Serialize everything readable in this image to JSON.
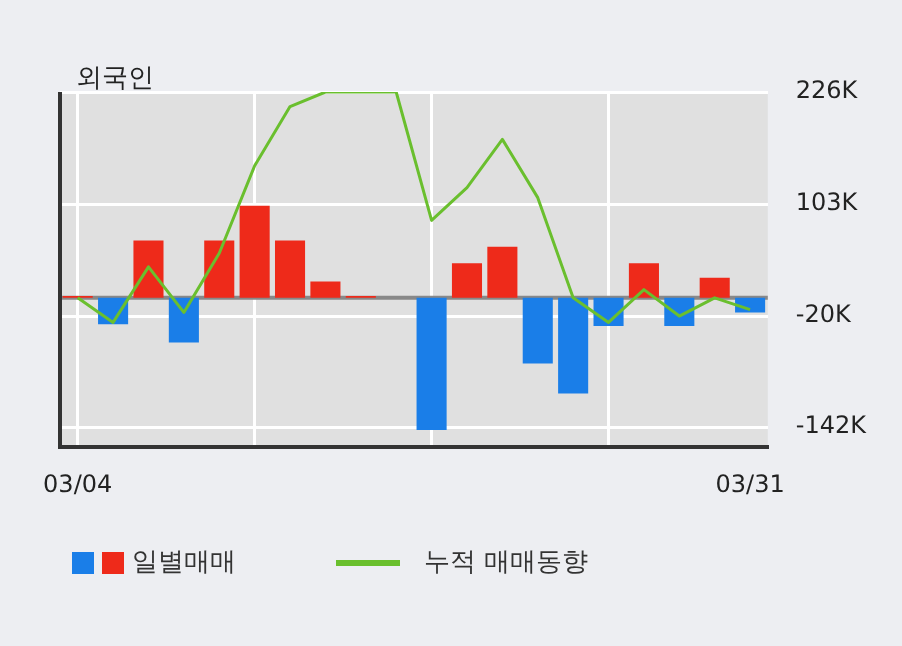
{
  "chart_data": {
    "type": "bar",
    "title": "외국인",
    "categories": [
      "03/04",
      null,
      null,
      null,
      null,
      null,
      null,
      null,
      null,
      null,
      null,
      null,
      null,
      null,
      null,
      null,
      null,
      null,
      null,
      "03/31"
    ],
    "series": [
      {
        "name": "일별매매",
        "colors": [
          "#ee2a1a",
          "#1a7ee8",
          "#ee2a1a",
          "#1a7ee8",
          "#ee2a1a",
          "#ee2a1a",
          "#ee2a1a",
          "#ee2a1a",
          "#ee2a1a",
          "#ee2a1a",
          "#1a7ee8",
          "#ee2a1a",
          "#ee2a1a",
          "#1a7ee8",
          "#1a7ee8",
          "#1a7ee8",
          "#ee2a1a",
          "#1a7ee8",
          "#ee2a1a",
          "#1a7ee8"
        ],
        "values": [
          2,
          -29,
          63,
          -49,
          63,
          101,
          63,
          18,
          2,
          0,
          -145,
          38,
          56,
          -72,
          -105,
          -31,
          38,
          -31,
          22,
          -16
        ]
      },
      {
        "name": "누적 매매동향",
        "type": "line",
        "color": "#6abf2e",
        "values": [
          0,
          -27,
          34,
          -16,
          49,
          145,
          210,
          226,
          226,
          226,
          85,
          121,
          174,
          110,
          0,
          -27,
          9,
          -20,
          0,
          -13
        ]
      }
    ],
    "ylim": [
      -164,
      226
    ],
    "yticks": [
      {
        "value": -142,
        "label": "-142K"
      },
      {
        "value": -20,
        "label": "-20K"
      },
      {
        "value": 103,
        "label": "103K"
      },
      {
        "value": 226,
        "label": "226K"
      }
    ],
    "ref_lines": [
      {
        "axis": "y",
        "value": 0,
        "color": "#888888"
      }
    ],
    "grid": true,
    "legend": "bottom",
    "marker": "none"
  }
}
